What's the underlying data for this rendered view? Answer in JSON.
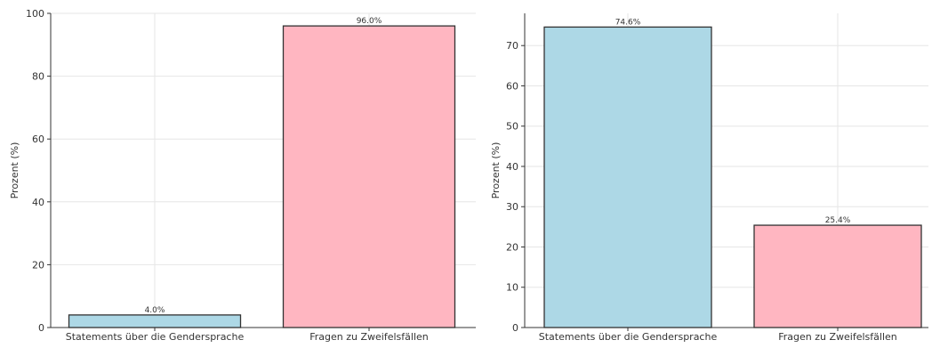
{
  "chart_data": [
    {
      "type": "bar",
      "title": "",
      "xlabel": "",
      "ylabel": "Prozent (%)",
      "categories": [
        "Statements über die Gendersprache",
        "Fragen zu Zweifelsfällen"
      ],
      "values": [
        4.0,
        96.0
      ],
      "value_labels": [
        "4.0%",
        "96.0%"
      ],
      "ylim": [
        0,
        100
      ],
      "yticks": [
        0,
        20,
        40,
        60,
        80,
        100
      ],
      "colors": [
        "#add8e6",
        "#ffb6c1"
      ],
      "grid": true
    },
    {
      "type": "bar",
      "title": "",
      "xlabel": "",
      "ylabel": "Prozent (%)",
      "categories": [
        "Statements über die Gendersprache",
        "Fragen zu Zweifelsfällen"
      ],
      "values": [
        74.6,
        25.4
      ],
      "value_labels": [
        "74.6%",
        "25.4%"
      ],
      "ylim": [
        0,
        78
      ],
      "yticks": [
        0,
        10,
        20,
        30,
        40,
        50,
        60,
        70
      ],
      "colors": [
        "#add8e6",
        "#ffb6c1"
      ],
      "grid": true
    }
  ]
}
